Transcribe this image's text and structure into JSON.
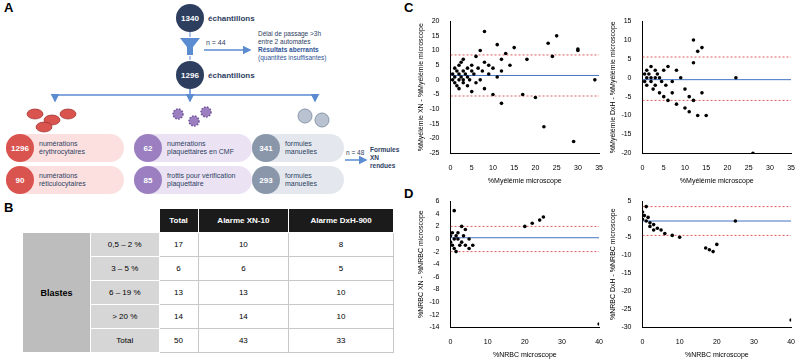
{
  "panel_labels": [
    "A",
    "B",
    "C",
    "D"
  ],
  "diagram": {
    "start": {
      "value": 1340,
      "label": "échantillons"
    },
    "exclusion": {
      "count": "n = 44",
      "reasons": [
        "Délai de passage >3h",
        "entre 2 automates",
        "Résultats aberrants",
        "(quantités insuffisantes)"
      ]
    },
    "kept": {
      "value": 1296,
      "label": "échantillons"
    },
    "branches": [
      {
        "color": "#d9534f",
        "items": [
          {
            "value": 1296,
            "label": "numérations érythrocytaires"
          },
          {
            "value": 90,
            "label": "numérations réticulocytaires"
          }
        ]
      },
      {
        "color": "#9b7fc0",
        "items": [
          {
            "value": 62,
            "label": "numérations plaquettaires en CMF"
          },
          {
            "value": 85,
            "label": "frottis pour vérification plaquettaire"
          }
        ]
      },
      {
        "color": "#8a97ab",
        "items": [
          {
            "value": 341,
            "label": "formules manuelles"
          },
          {
            "value": 293,
            "label": "formules manuelles"
          }
        ],
        "side": {
          "count": "n = 48",
          "label": "Formules XN rendues"
        }
      }
    ]
  },
  "table": {
    "columns": [
      "Total",
      "Alarme XN-10",
      "Alarme DxH-900"
    ],
    "row_group": "Blastes",
    "rows": [
      [
        "0,5 – 2 %",
        17,
        10,
        8
      ],
      [
        "3 – 5 %",
        6,
        6,
        5
      ],
      [
        "6 – 19 %",
        13,
        13,
        10
      ],
      [
        "> 20 %",
        14,
        14,
        10
      ],
      [
        "Total",
        50,
        43,
        33
      ]
    ]
  },
  "chart_data": [
    {
      "type": "scatter",
      "panel": "C",
      "x_label": "%Myélémie microscope",
      "y_label": "%Myélémie XN - %Myélémie microscope",
      "xlim": [
        0,
        35
      ],
      "xticks": [
        0,
        5,
        10,
        15,
        20,
        25,
        30,
        35
      ],
      "ylim": [
        -25,
        20
      ],
      "yticks": [
        -25,
        -20,
        -15,
        -10,
        -5,
        0,
        5,
        10,
        15,
        20
      ],
      "grid": false,
      "series": [
        {
          "color": "#000000",
          "marker": "circle",
          "x": [
            0.5,
            0.5,
            1,
            1,
            1,
            1.5,
            1.5,
            2,
            2,
            2,
            2,
            2.5,
            2.5,
            3,
            3,
            3,
            3,
            3.5,
            4,
            4,
            4,
            4.5,
            5,
            5,
            5,
            5.5,
            6,
            6,
            6.5,
            7,
            7,
            7.5,
            8,
            8,
            8,
            9,
            9,
            10,
            10,
            11,
            11,
            12,
            12,
            12,
            13,
            14,
            15,
            17,
            18,
            20,
            22,
            23,
            24,
            25,
            29,
            30,
            30,
            34
          ],
          "values": [
            2,
            0,
            4,
            -1,
            1,
            3,
            -2,
            5,
            0,
            2,
            -3,
            1,
            6,
            3,
            -1,
            7,
            0,
            2,
            4,
            -2,
            1,
            0,
            3,
            5,
            -4,
            2,
            8,
            -1,
            4,
            10,
            0,
            3,
            16.5,
            6,
            -3,
            5,
            2,
            4,
            -5,
            12,
            1,
            7,
            -8,
            3,
            9,
            5,
            11,
            -5,
            7,
            -6,
            -16,
            12.5,
            8,
            15,
            -21,
            10,
            10.5,
            0
          ]
        },
        {
          "type": "line",
          "color": "#4472c4",
          "line_style": "solid",
          "x": [
            0,
            35
          ],
          "values": [
            1.5,
            1.5
          ]
        },
        {
          "type": "line",
          "color": "#e05a5a",
          "line_style": "dotted",
          "x": [
            0,
            35
          ],
          "values": [
            8.5,
            8.5
          ]
        },
        {
          "type": "line",
          "color": "#e05a5a",
          "line_style": "dotted",
          "x": [
            0,
            35
          ],
          "values": [
            -5.5,
            -5.5
          ]
        }
      ]
    },
    {
      "type": "scatter",
      "x_label": "%Myélémie microscope",
      "y_label": "%Myélémie DxH - %Myélémie microscope",
      "xlim": [
        0,
        35
      ],
      "xticks": [
        0,
        5,
        10,
        15,
        20,
        25,
        30,
        35
      ],
      "ylim": [
        -20,
        15
      ],
      "yticks": [
        -20,
        -15,
        -10,
        -5,
        0,
        5,
        10,
        15
      ],
      "grid": false,
      "series": [
        {
          "color": "#000000",
          "marker": "circle",
          "x": [
            0.5,
            0.5,
            1,
            1,
            1,
            1.5,
            2,
            2,
            2,
            2.5,
            3,
            3,
            3,
            3.5,
            4,
            4,
            4.5,
            5,
            5,
            5.5,
            6,
            6,
            7,
            7,
            8,
            8,
            9,
            10,
            10,
            11,
            11,
            12,
            12,
            12,
            13,
            13,
            14,
            14,
            15,
            22,
            26
          ],
          "values": [
            1,
            -1,
            2,
            0,
            -2,
            1,
            3,
            -1,
            0,
            -3,
            2,
            -2,
            0,
            1,
            -4,
            0,
            -1,
            2,
            -5,
            -2,
            3,
            -6,
            -1,
            -4,
            2,
            -7,
            0,
            -3,
            -8,
            -5,
            -9,
            4,
            10,
            -6,
            -10,
            7,
            -4,
            8,
            -10,
            0,
            -20
          ]
        },
        {
          "type": "line",
          "color": "#4472c4",
          "line_style": "solid",
          "x": [
            0,
            35
          ],
          "values": [
            -0.5,
            -0.5
          ]
        },
        {
          "type": "line",
          "color": "#e05a5a",
          "line_style": "dotted",
          "x": [
            0,
            35
          ],
          "values": [
            5.5,
            5.5
          ]
        },
        {
          "type": "line",
          "color": "#e05a5a",
          "line_style": "dotted",
          "x": [
            0,
            35
          ],
          "values": [
            -6,
            -6
          ]
        }
      ]
    },
    {
      "type": "scatter",
      "panel": "D",
      "x_label": "%NRBC microscope",
      "y_label": "%NRBC XN - %NRBC microscope",
      "xlim": [
        0,
        40
      ],
      "xticks": [
        0,
        10,
        20,
        30,
        40
      ],
      "ylim": [
        -14,
        6
      ],
      "yticks": [
        -14,
        -12,
        -10,
        -8,
        -6,
        -4,
        -2,
        0,
        2,
        4,
        6
      ],
      "grid": false,
      "series": [
        {
          "color": "#000000",
          "marker": "circle",
          "x": [
            0,
            0,
            0.5,
            0.5,
            1,
            1,
            1,
            1.5,
            1.5,
            2,
            2,
            2.5,
            3,
            3,
            3.5,
            4,
            4,
            5,
            5,
            6,
            20,
            22,
            24,
            25,
            40
          ],
          "values": [
            0.5,
            -0.5,
            1,
            -1,
            4.5,
            0,
            -1.5,
            0.5,
            -2,
            1,
            0,
            -1,
            2,
            -0.5,
            0.5,
            -1,
            1.5,
            0,
            -1.5,
            -1,
            2,
            2.5,
            3,
            3.5,
            -13.5
          ]
        },
        {
          "type": "line",
          "color": "#4472c4",
          "line_style": "solid",
          "x": [
            0,
            40
          ],
          "values": [
            0.2,
            0.2
          ]
        },
        {
          "type": "line",
          "color": "#e05a5a",
          "line_style": "dotted",
          "x": [
            0,
            40
          ],
          "values": [
            2,
            2
          ]
        },
        {
          "type": "line",
          "color": "#e05a5a",
          "line_style": "dotted",
          "x": [
            0,
            40
          ],
          "values": [
            -2,
            -2
          ]
        }
      ]
    },
    {
      "type": "scatter",
      "x_label": "%NRBC microscope",
      "y_label": "%NRBC DxH - %NRBC microscope",
      "xlim": [
        0,
        40
      ],
      "xticks": [
        0,
        10,
        20,
        30,
        40
      ],
      "ylim": [
        -30,
        5
      ],
      "yticks": [
        -30,
        -25,
        -20,
        -15,
        -10,
        -5,
        0,
        5
      ],
      "grid": false,
      "series": [
        {
          "color": "#000000",
          "marker": "circle",
          "x": [
            0,
            0,
            0.5,
            1,
            1,
            1.5,
            2,
            2,
            3,
            3,
            4,
            5,
            6,
            8,
            10,
            17,
            18,
            19,
            20,
            25,
            40
          ],
          "values": [
            2,
            0,
            1,
            3.5,
            -0.5,
            0.5,
            -1,
            -2,
            -1.5,
            -3,
            -2.5,
            -3,
            -4,
            -4.5,
            -5,
            -8,
            -8.5,
            -9,
            -7,
            -0.5,
            -28
          ]
        },
        {
          "type": "line",
          "color": "#4472c4",
          "line_style": "solid",
          "x": [
            0,
            40
          ],
          "values": [
            -0.5,
            -0.5
          ]
        },
        {
          "type": "line",
          "color": "#e05a5a",
          "line_style": "dotted",
          "x": [
            0,
            40
          ],
          "values": [
            3.5,
            3.5
          ]
        },
        {
          "type": "line",
          "color": "#e05a5a",
          "line_style": "dotted",
          "x": [
            0,
            40
          ],
          "values": [
            -4.5,
            -4.5
          ]
        }
      ]
    }
  ]
}
